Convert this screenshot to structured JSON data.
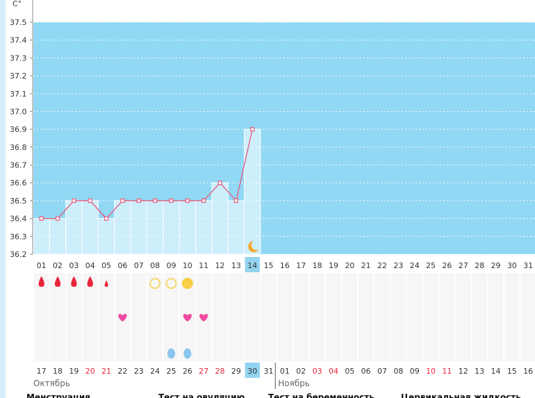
{
  "chart_data": {
    "type": "line",
    "y_unit": "C°",
    "ylim": [
      36.2,
      37.5
    ],
    "y_ticks": [
      "36.2",
      "36.3",
      "36.4",
      "36.5",
      "36.6",
      "36.7",
      "36.8",
      "36.9",
      "37.0",
      "37.1",
      "37.2",
      "37.3",
      "37.4",
      "37.5"
    ],
    "grid": true,
    "x_top": [
      "01",
      "02",
      "03",
      "04",
      "05",
      "06",
      "07",
      "08",
      "09",
      "10",
      "11",
      "12",
      "13",
      "14",
      "15",
      "16",
      "17",
      "18",
      "19",
      "20",
      "21",
      "22",
      "23",
      "24",
      "25",
      "26",
      "27",
      "28",
      "29",
      "30",
      "31"
    ],
    "current_day_index": 13,
    "series": [
      {
        "values": [
          36.4,
          36.4,
          36.5,
          36.5,
          36.4,
          36.5,
          36.5,
          36.5,
          36.5,
          36.5,
          36.5,
          36.6,
          36.5,
          36.9
        ]
      }
    ],
    "x_bottom": [
      "17",
      "18",
      "19",
      "20",
      "21",
      "22",
      "23",
      "24",
      "25",
      "26",
      "27",
      "28",
      "29",
      "30",
      "31",
      "01",
      "02",
      "03",
      "04",
      "05",
      "06",
      "07",
      "08",
      "09",
      "10",
      "11",
      "12",
      "13",
      "14",
      "15",
      "16"
    ],
    "x_bottom_red": [
      "20",
      "21",
      "27",
      "28",
      "03",
      "04",
      "10",
      "11"
    ],
    "months": [
      "Октябрь",
      "Ноябрь"
    ],
    "markers": {
      "menstruation": [
        {
          "day": 0,
          "size": "large"
        },
        {
          "day": 1,
          "size": "large"
        },
        {
          "day": 2,
          "size": "large"
        },
        {
          "day": 3,
          "size": "large"
        },
        {
          "day": 4,
          "size": "small"
        }
      ],
      "ovulation_test": [
        {
          "day": 7,
          "state": "empty"
        },
        {
          "day": 8,
          "state": "empty"
        },
        {
          "day": 9,
          "state": "filled"
        }
      ],
      "hearts": [
        5,
        9,
        10
      ],
      "drops": [
        8,
        9
      ],
      "moon": 13
    },
    "legend": [
      "Менструация",
      "Тест на овуляцию",
      "Тест на беременность",
      "Цервикальная жидкость"
    ],
    "colors": {
      "sky": "#91d8f4",
      "bar": "#cdeefb",
      "line": "#e8587a",
      "today": "#92d3ef",
      "blood": "#e8253a",
      "heart": "#f04aa2",
      "ovulation": "#f6cf45",
      "drop": "#8ac6ee",
      "moon": "#f5a623"
    }
  }
}
